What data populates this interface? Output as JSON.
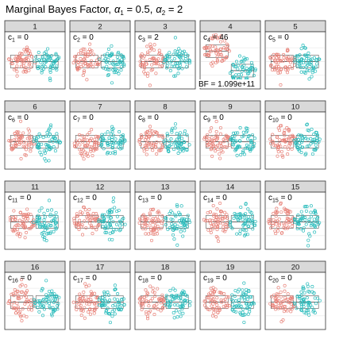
{
  "title": "Marginal Bayes Factor,",
  "title_alpha1_label": "α",
  "title_alpha1_sub": "1",
  "title_alpha1_value": " = 0.5,",
  "title_alpha2_label": "α",
  "title_alpha2_sub": "2",
  "title_alpha2_value": " = 2",
  "colors": {
    "group1": "#e8837a",
    "group2": "#2bbcbc",
    "strip_fill": "#d9d9d9",
    "strip_border": "#333333",
    "panel_border": "#333333",
    "grid": "#ebebeb",
    "box_line": "#555555"
  },
  "chart_data": {
    "type": "scatter",
    "layout": {
      "rows": 4,
      "cols": 5
    },
    "groups": [
      "group1",
      "group2"
    ],
    "panels": [
      {
        "strip": "1",
        "c_label": "c",
        "c_sub": "1",
        "c_value": " = 0",
        "bf": ""
      },
      {
        "strip": "2",
        "c_label": "c",
        "c_sub": "2",
        "c_value": " = 0",
        "bf": ""
      },
      {
        "strip": "3",
        "c_label": "c",
        "c_sub": "3",
        "c_value": " = 2",
        "bf": ""
      },
      {
        "strip": "4",
        "c_label": "c",
        "c_sub": "4",
        "c_value": " = 46",
        "bf": "BF = 1.099e+11"
      },
      {
        "strip": "5",
        "c_label": "c",
        "c_sub": "5",
        "c_value": " = 0",
        "bf": ""
      },
      {
        "strip": "6",
        "c_label": "c",
        "c_sub": "6",
        "c_value": " = 0",
        "bf": ""
      },
      {
        "strip": "7",
        "c_label": "c",
        "c_sub": "7",
        "c_value": " = 0",
        "bf": ""
      },
      {
        "strip": "8",
        "c_label": "c",
        "c_sub": "8",
        "c_value": " = 0",
        "bf": ""
      },
      {
        "strip": "9",
        "c_label": "c",
        "c_sub": "9",
        "c_value": " = 0",
        "bf": ""
      },
      {
        "strip": "10",
        "c_label": "c",
        "c_sub": "10",
        "c_value": " = 0",
        "bf": ""
      },
      {
        "strip": "11",
        "c_label": "c",
        "c_sub": "11",
        "c_value": " = 0",
        "bf": ""
      },
      {
        "strip": "12",
        "c_label": "c",
        "c_sub": "12",
        "c_value": " = 0",
        "bf": ""
      },
      {
        "strip": "13",
        "c_label": "c",
        "c_sub": "13",
        "c_value": " = 0",
        "bf": ""
      },
      {
        "strip": "14",
        "c_label": "c",
        "c_sub": "14",
        "c_value": " = 0",
        "bf": ""
      },
      {
        "strip": "15",
        "c_label": "c",
        "c_sub": "15",
        "c_value": " = 0",
        "bf": ""
      },
      {
        "strip": "16",
        "c_label": "c",
        "c_sub": "16",
        "c_value": " = 0",
        "bf": ""
      },
      {
        "strip": "17",
        "c_label": "c",
        "c_sub": "17",
        "c_value": " = 0",
        "bf": ""
      },
      {
        "strip": "18",
        "c_label": "c",
        "c_sub": "18",
        "c_value": " = 0",
        "bf": ""
      },
      {
        "strip": "19",
        "c_label": "c",
        "c_sub": "19",
        "c_value": " = 0",
        "bf": ""
      },
      {
        "strip": "20",
        "c_label": "c",
        "c_sub": "20",
        "c_value": " = 0",
        "bf": ""
      }
    ]
  }
}
